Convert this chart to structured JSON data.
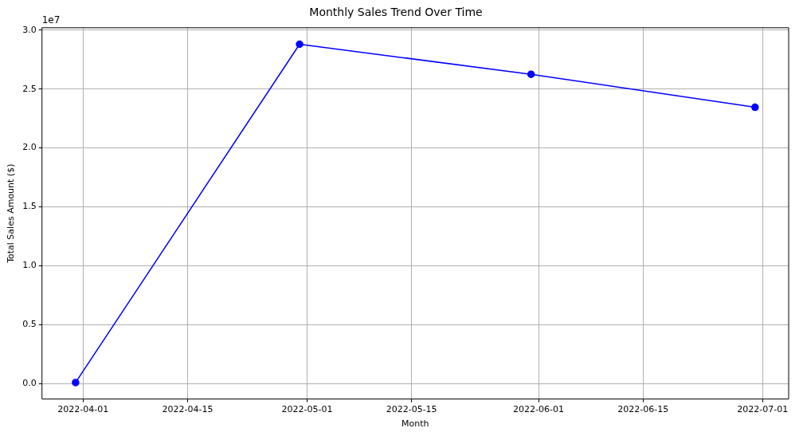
{
  "chart_data": {
    "type": "line",
    "title": "Monthly Sales Trend Over Time",
    "xlabel": "Month",
    "ylabel": "Total Sales Amount ($)",
    "x": [
      "2022-03-31",
      "2022-04-30",
      "2022-05-31",
      "2022-06-30"
    ],
    "series": [
      {
        "color": "#0000ff",
        "values": [
          0.01,
          2.88,
          2.625,
          2.345
        ]
      }
    ],
    "xlim": [
      "2022-03-26T12:00",
      "2022-07-04T12:00"
    ],
    "xticks": [
      "2022-04-01",
      "2022-04-15",
      "2022-05-01",
      "2022-05-15",
      "2022-06-01",
      "2022-06-15",
      "2022-07-01"
    ],
    "ylim": [
      -0.13,
      3.02
    ],
    "yticks": [
      {
        "value": 0,
        "label": "0.0"
      },
      0.5,
      {
        "value": 1,
        "label": "1.0"
      },
      1.5,
      {
        "value": 2,
        "label": "2.0"
      },
      2.5,
      {
        "value": 3,
        "label": "3.0"
      }
    ],
    "annotations": [
      "1e7"
    ],
    "grid": true,
    "legend": false,
    "marker": "circle",
    "line_style": "solid"
  }
}
